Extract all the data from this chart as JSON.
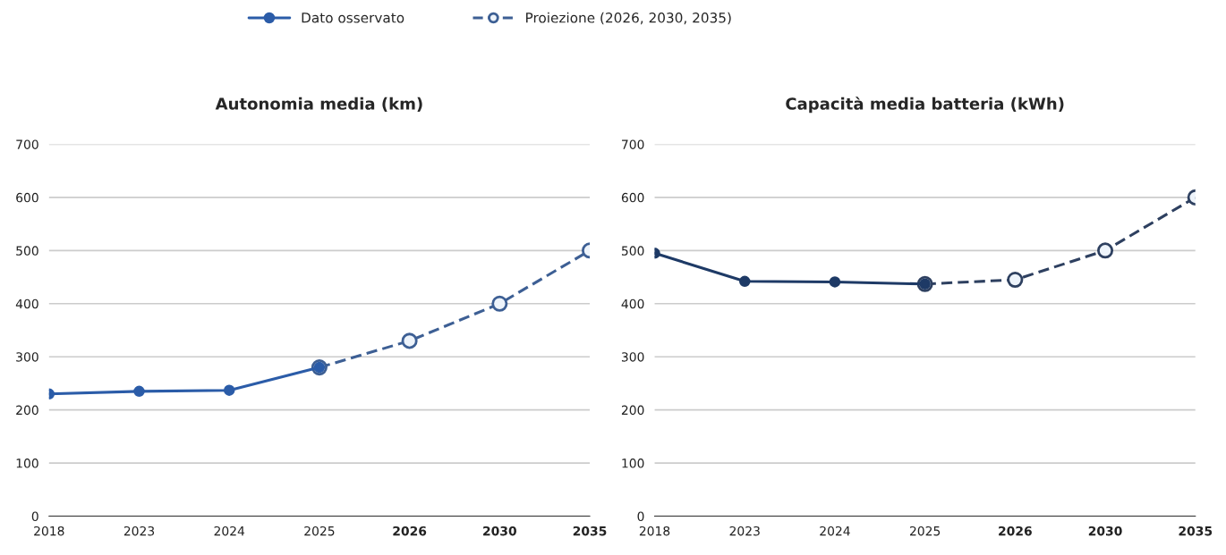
{
  "chart_data": [
    {
      "type": "line",
      "title": "Autonomia media (km)",
      "categories": [
        "2018",
        "2023",
        "2024",
        "2025",
        "2026",
        "2030",
        "2035"
      ],
      "ylim": [
        0,
        700
      ],
      "yticks": [
        0,
        100,
        200,
        300,
        400,
        500,
        600,
        700
      ],
      "grid": "y",
      "legend": "top",
      "marker": "circle",
      "series": [
        {
          "name": "Dato osservato",
          "color": "#2b5ca8",
          "line_style": "solid",
          "values": [
            230,
            235,
            237,
            280,
            null,
            null,
            null
          ]
        },
        {
          "name": "Proiezione (2026, 2030, 2035)",
          "color": "#3d5f94",
          "line_style": "dashed",
          "values": [
            null,
            null,
            null,
            280,
            330,
            400,
            500
          ]
        }
      ]
    },
    {
      "type": "line",
      "title": "Capacità media batteria (kWh)",
      "categories": [
        "2018",
        "2023",
        "2024",
        "2025",
        "2026",
        "2030",
        "2035"
      ],
      "ylim": [
        0,
        700
      ],
      "yticks": [
        0,
        100,
        200,
        300,
        400,
        500,
        600,
        700
      ],
      "grid": "y",
      "marker": "circle",
      "series": [
        {
          "color": "#1e3a66",
          "line_style": "solid",
          "values": [
            495,
            442,
            441,
            437,
            null,
            null,
            null
          ]
        },
        {
          "color": "#2e4060",
          "line_style": "dashed",
          "values": [
            null,
            null,
            null,
            437,
            445,
            500,
            600
          ]
        }
      ]
    }
  ]
}
